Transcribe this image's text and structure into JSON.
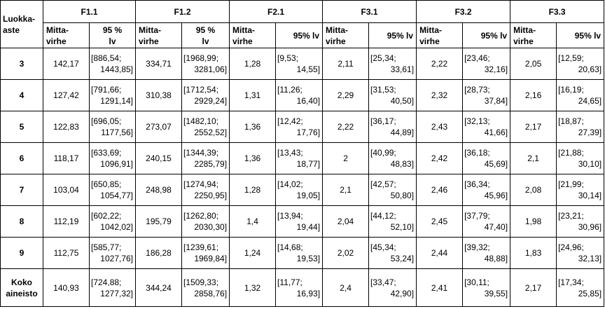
{
  "header": {
    "grade_label_line1": "Luokka-",
    "grade_label_line2": "aste",
    "groups": [
      "F1.1",
      "F1.2",
      "F2.1",
      "F3.1",
      "F3.2",
      "F3.3"
    ],
    "sub": {
      "mv_line1": "Mitta-",
      "mv_line2": "virhe",
      "ci_split_line1": "95 %",
      "ci_split_line2": "lv",
      "ci_single": "95% lv"
    }
  },
  "rows": [
    {
      "grade": "3",
      "values": [
        {
          "mv": "142,17",
          "ci1": "[886,54;",
          "ci2": "1443,85]"
        },
        {
          "mv": "334,71",
          "ci1": "[1968,99;",
          "ci2": "3281,06]"
        },
        {
          "mv": "1,28",
          "ci1": "[9,53;",
          "ci2": "14,55]"
        },
        {
          "mv": "2,11",
          "ci1": "[25,34;",
          "ci2": "33,61]"
        },
        {
          "mv": "2,22",
          "ci1": "[23,46;",
          "ci2": "32,16]"
        },
        {
          "mv": "2,05",
          "ci1": "[12,59;",
          "ci2": "20,63]"
        }
      ]
    },
    {
      "grade": "4",
      "values": [
        {
          "mv": "127,42",
          "ci1": "[791,66;",
          "ci2": "1291,14]"
        },
        {
          "mv": "310,38",
          "ci1": "[1712,54;",
          "ci2": "2929,24]"
        },
        {
          "mv": "1,31",
          "ci1": "[11,26;",
          "ci2": "16,40]"
        },
        {
          "mv": "2,29",
          "ci1": "[31,53;",
          "ci2": "40,50]"
        },
        {
          "mv": "2,32",
          "ci1": "[28,73;",
          "ci2": "37,84]"
        },
        {
          "mv": "2,16",
          "ci1": "[16,19;",
          "ci2": "24,65]"
        }
      ]
    },
    {
      "grade": "5",
      "values": [
        {
          "mv": "122,83",
          "ci1": "[696,05;",
          "ci2": "1177,56]"
        },
        {
          "mv": "273,07",
          "ci1": "[1482,10;",
          "ci2": "2552,52]"
        },
        {
          "mv": "1,36",
          "ci1": "[12,42;",
          "ci2": "17,76]"
        },
        {
          "mv": "2,22",
          "ci1": "[36,17;",
          "ci2": "44,89]"
        },
        {
          "mv": "2,43",
          "ci1": "[32,13;",
          "ci2": "41,66]"
        },
        {
          "mv": "2,17",
          "ci1": "[18,87;",
          "ci2": "27,39]"
        }
      ]
    },
    {
      "grade": "6",
      "values": [
        {
          "mv": "118,17",
          "ci1": "[633,69;",
          "ci2": "1096,91]"
        },
        {
          "mv": "240,15",
          "ci1": "[1344,39;",
          "ci2": "2285,79]"
        },
        {
          "mv": "1,36",
          "ci1": "[13,43;",
          "ci2": "18,77]"
        },
        {
          "mv": "2",
          "ci1": "[40,99;",
          "ci2": "48,83]"
        },
        {
          "mv": "2,42",
          "ci1": "[36,18;",
          "ci2": "45,69]"
        },
        {
          "mv": "2,1",
          "ci1": "[21,88;",
          "ci2": "30,10]"
        }
      ]
    },
    {
      "grade": "7",
      "values": [
        {
          "mv": "103,04",
          "ci1": "[650,85;",
          "ci2": "1054,77]"
        },
        {
          "mv": "248,98",
          "ci1": "[1274,94;",
          "ci2": "2250,95]"
        },
        {
          "mv": "1,28",
          "ci1": "[14,02;",
          "ci2": "19,05]"
        },
        {
          "mv": "2,1",
          "ci1": "[42,57;",
          "ci2": "50,80]"
        },
        {
          "mv": "2,46",
          "ci1": "[36,34;",
          "ci2": "45,96]"
        },
        {
          "mv": "2,08",
          "ci1": "[21,99;",
          "ci2": "30,14]"
        }
      ]
    },
    {
      "grade": "8",
      "values": [
        {
          "mv": "112,19",
          "ci1": "[602,22;",
          "ci2": "1042,02]"
        },
        {
          "mv": "195,79",
          "ci1": "[1262,80;",
          "ci2": "2030,30]"
        },
        {
          "mv": "1,4",
          "ci1": "[13,94;",
          "ci2": "19,44]"
        },
        {
          "mv": "2,04",
          "ci1": "[44,12;",
          "ci2": "52,10]"
        },
        {
          "mv": "2,45",
          "ci1": "[37,79;",
          "ci2": "47,40]"
        },
        {
          "mv": "1,98",
          "ci1": "[23,21;",
          "ci2": "30,96]"
        }
      ]
    },
    {
      "grade": "9",
      "values": [
        {
          "mv": "112,75",
          "ci1": "[585,77;",
          "ci2": "1027,76]"
        },
        {
          "mv": "186,28",
          "ci1": "[1239,61;",
          "ci2": "1969,84]"
        },
        {
          "mv": "1,24",
          "ci1": "[14,68;",
          "ci2": "19,53]"
        },
        {
          "mv": "2,02",
          "ci1": "[45,34;",
          "ci2": "53,24]"
        },
        {
          "mv": "2,44",
          "ci1": "[39,32;",
          "ci2": "48,88]"
        },
        {
          "mv": "1,83",
          "ci1": "[24,96;",
          "ci2": "32,13]"
        }
      ]
    },
    {
      "grade": "Koko aineisto",
      "grade_line1": "Koko",
      "grade_line2": "aineisto",
      "values": [
        {
          "mv": "140,93",
          "ci1": "[724,88;",
          "ci2": "1277,32]"
        },
        {
          "mv": "344,24",
          "ci1": "[1509,33;",
          "ci2": "2858,76]"
        },
        {
          "mv": "1,32",
          "ci1": "[11,77;",
          "ci2": "16,93]"
        },
        {
          "mv": "2,4",
          "ci1": "[33,47;",
          "ci2": "42,90]"
        },
        {
          "mv": "2,41",
          "ci1": "[30,11;",
          "ci2": "39,55]"
        },
        {
          "mv": "2,17",
          "ci1": "[17,34;",
          "ci2": "25,85]"
        }
      ]
    }
  ]
}
